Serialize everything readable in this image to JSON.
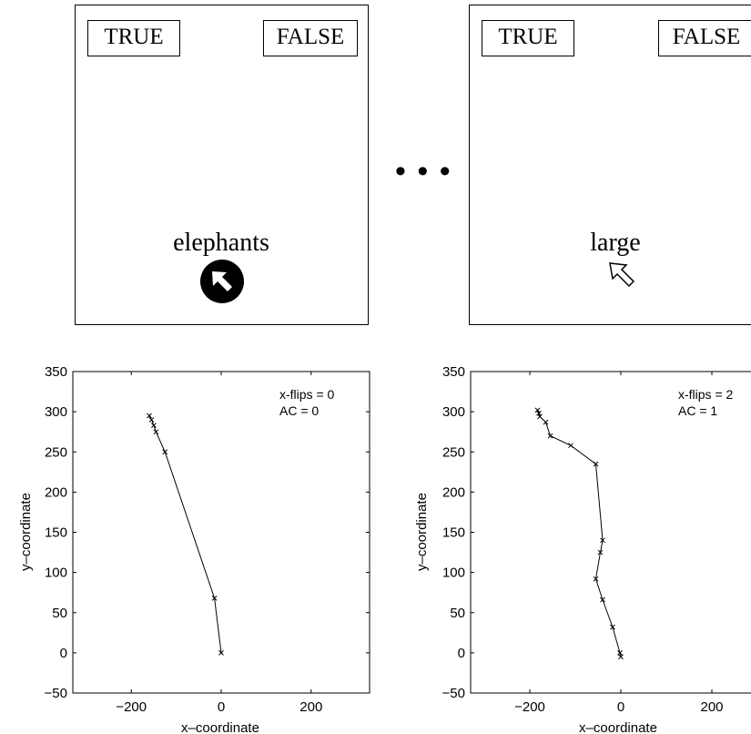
{
  "screens": [
    {
      "true_label": "TRUE",
      "false_label": "FALSE",
      "word": "elephants",
      "cursor": "filled-circle-arrow-cursor-icon"
    },
    {
      "true_label": "TRUE",
      "false_label": "FALSE",
      "word": "large",
      "cursor": "arrow-cursor-icon"
    }
  ],
  "ellipsis": "• • •",
  "chart_data": [
    {
      "type": "line",
      "xlabel": "x–coordinate",
      "ylabel": "y–coordinate",
      "xlim": [
        -330,
        330
      ],
      "ylim": [
        -50,
        350
      ],
      "xticks": [
        "-200",
        "0",
        "200"
      ],
      "yticks": [
        "-50",
        "0",
        "50",
        "100",
        "150",
        "200",
        "250",
        "300",
        "350"
      ],
      "annotation": [
        "x-flips = 0",
        "AC = 0"
      ],
      "x": [
        -160,
        -155,
        -150,
        -145,
        -125,
        -15,
        0
      ],
      "y": [
        295,
        290,
        283,
        275,
        250,
        68,
        0
      ]
    },
    {
      "type": "line",
      "xlabel": "x–coordinate",
      "ylabel": "y–coordinate",
      "xlim": [
        -330,
        330
      ],
      "ylim": [
        -50,
        350
      ],
      "xticks": [
        "-200",
        "0",
        "200"
      ],
      "yticks": [
        "-50",
        "0",
        "50",
        "100",
        "150",
        "200",
        "250",
        "300",
        "350"
      ],
      "annotation": [
        "x-flips = 2",
        "AC = 1"
      ],
      "x": [
        -183,
        -180,
        -178,
        -165,
        -155,
        -110,
        -55,
        -40,
        -45,
        -55,
        -40,
        -18,
        -2,
        0
      ],
      "y": [
        302,
        298,
        294,
        287,
        270,
        258,
        235,
        140,
        125,
        92,
        66,
        32,
        0,
        -5
      ]
    }
  ]
}
